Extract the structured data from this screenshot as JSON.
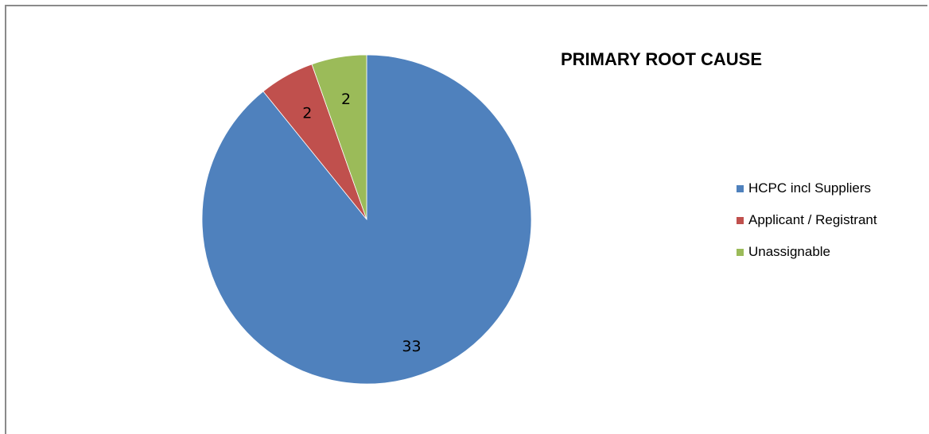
{
  "chart_data": {
    "type": "pie",
    "title": "PRIMARY ROOT CAUSE",
    "categories": [
      "HCPC incl Suppliers",
      "Applicant / Registrant",
      "Unassignable"
    ],
    "values": [
      33,
      2,
      2
    ],
    "colors": [
      "#4f81bd",
      "#c0504d",
      "#9bbb59"
    ],
    "start_angle_deg": 0,
    "direction": "clockwise",
    "legend_position": "right",
    "data_labels": [
      "33",
      "2",
      "2"
    ]
  }
}
